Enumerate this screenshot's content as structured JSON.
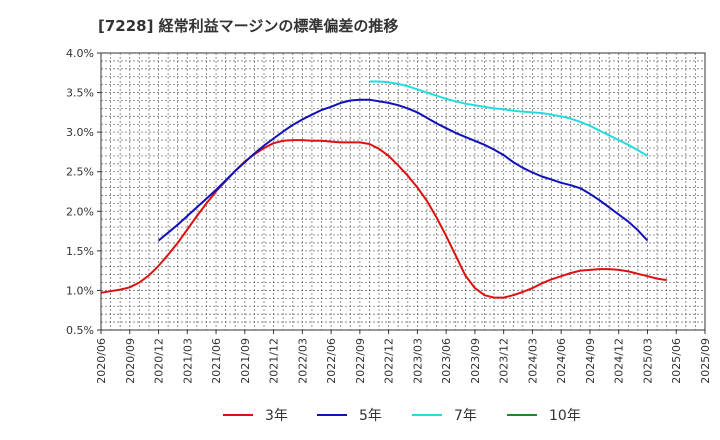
{
  "chart_data": {
    "type": "line",
    "title": "[7228]  経常利益マージンの標準偏差の推移",
    "xlabel": "",
    "ylabel": "",
    "ylim": [
      0.5,
      4.0
    ],
    "xlim": [
      "2020/06",
      "2025/09"
    ],
    "grid": true,
    "legend_position": "bottom",
    "x_ticks": [
      "2020/06",
      "2020/09",
      "2020/12",
      "2021/03",
      "2021/06",
      "2021/09",
      "2021/12",
      "2022/03",
      "2022/06",
      "2022/09",
      "2022/12",
      "2023/03",
      "2023/06",
      "2023/09",
      "2023/12",
      "2024/03",
      "2024/06",
      "2024/09",
      "2024/12",
      "2025/03",
      "2025/06",
      "2025/09"
    ],
    "y_ticks": [
      {
        "value": 0.5,
        "label": "0.5%"
      },
      {
        "value": 1.0,
        "label": "1.0%"
      },
      {
        "value": 1.5,
        "label": "1.5%"
      },
      {
        "value": 2.0,
        "label": "2.0%"
      },
      {
        "value": 2.5,
        "label": "2.5%"
      },
      {
        "value": 3.0,
        "label": "3.0%"
      },
      {
        "value": 3.5,
        "label": "3.5%"
      },
      {
        "value": 4.0,
        "label": "4.0%"
      }
    ],
    "series": [
      {
        "name": "3年",
        "color": "#dd1111",
        "points": [
          [
            "2020/06",
            0.97
          ],
          [
            "2020/07",
            0.99
          ],
          [
            "2020/08",
            1.01
          ],
          [
            "2020/09",
            1.04
          ],
          [
            "2020/10",
            1.1
          ],
          [
            "2020/11",
            1.19
          ],
          [
            "2020/12",
            1.31
          ],
          [
            "2021/01",
            1.45
          ],
          [
            "2021/02",
            1.6
          ],
          [
            "2021/03",
            1.77
          ],
          [
            "2021/04",
            1.94
          ],
          [
            "2021/05",
            2.1
          ],
          [
            "2021/06",
            2.25
          ],
          [
            "2021/07",
            2.38
          ],
          [
            "2021/08",
            2.51
          ],
          [
            "2021/09",
            2.63
          ],
          [
            "2021/10",
            2.72
          ],
          [
            "2021/11",
            2.8
          ],
          [
            "2021/12",
            2.86
          ],
          [
            "2022/01",
            2.89
          ],
          [
            "2022/02",
            2.9
          ],
          [
            "2022/03",
            2.9
          ],
          [
            "2022/04",
            2.89
          ],
          [
            "2022/05",
            2.89
          ],
          [
            "2022/06",
            2.88
          ],
          [
            "2022/07",
            2.87
          ],
          [
            "2022/08",
            2.87
          ],
          [
            "2022/09",
            2.87
          ],
          [
            "2022/10",
            2.85
          ],
          [
            "2022/11",
            2.79
          ],
          [
            "2022/12",
            2.7
          ],
          [
            "2023/01",
            2.58
          ],
          [
            "2023/02",
            2.45
          ],
          [
            "2023/03",
            2.3
          ],
          [
            "2023/04",
            2.13
          ],
          [
            "2023/05",
            1.92
          ],
          [
            "2023/06",
            1.69
          ],
          [
            "2023/07",
            1.44
          ],
          [
            "2023/08",
            1.19
          ],
          [
            "2023/09",
            1.03
          ],
          [
            "2023/10",
            0.94
          ],
          [
            "2023/11",
            0.91
          ],
          [
            "2023/12",
            0.91
          ],
          [
            "2024/01",
            0.94
          ],
          [
            "2024/02",
            0.98
          ],
          [
            "2024/03",
            1.03
          ],
          [
            "2024/04",
            1.09
          ],
          [
            "2024/05",
            1.14
          ],
          [
            "2024/06",
            1.18
          ],
          [
            "2024/07",
            1.22
          ],
          [
            "2024/08",
            1.25
          ],
          [
            "2024/09",
            1.26
          ],
          [
            "2024/10",
            1.27
          ],
          [
            "2024/11",
            1.27
          ],
          [
            "2024/12",
            1.26
          ],
          [
            "2025/01",
            1.24
          ],
          [
            "2025/02",
            1.21
          ],
          [
            "2025/03",
            1.18
          ],
          [
            "2025/04",
            1.15
          ],
          [
            "2025/05",
            1.13
          ]
        ]
      },
      {
        "name": "5年",
        "color": "#1111bb",
        "points": [
          [
            "2020/12",
            1.63
          ],
          [
            "2021/01",
            1.73
          ],
          [
            "2021/02",
            1.83
          ],
          [
            "2021/03",
            1.94
          ],
          [
            "2021/04",
            2.05
          ],
          [
            "2021/05",
            2.16
          ],
          [
            "2021/06",
            2.27
          ],
          [
            "2021/07",
            2.39
          ],
          [
            "2021/08",
            2.51
          ],
          [
            "2021/09",
            2.62
          ],
          [
            "2021/10",
            2.73
          ],
          [
            "2021/11",
            2.83
          ],
          [
            "2021/12",
            2.92
          ],
          [
            "2022/01",
            3.01
          ],
          [
            "2022/02",
            3.09
          ],
          [
            "2022/03",
            3.16
          ],
          [
            "2022/04",
            3.22
          ],
          [
            "2022/05",
            3.28
          ],
          [
            "2022/06",
            3.32
          ],
          [
            "2022/07",
            3.37
          ],
          [
            "2022/08",
            3.4
          ],
          [
            "2022/09",
            3.41
          ],
          [
            "2022/10",
            3.41
          ],
          [
            "2022/11",
            3.39
          ],
          [
            "2022/12",
            3.37
          ],
          [
            "2023/01",
            3.34
          ],
          [
            "2023/02",
            3.3
          ],
          [
            "2023/03",
            3.25
          ],
          [
            "2023/04",
            3.18
          ],
          [
            "2023/05",
            3.11
          ],
          [
            "2023/06",
            3.05
          ],
          [
            "2023/07",
            2.99
          ],
          [
            "2023/08",
            2.94
          ],
          [
            "2023/09",
            2.89
          ],
          [
            "2023/10",
            2.84
          ],
          [
            "2023/11",
            2.78
          ],
          [
            "2023/12",
            2.71
          ],
          [
            "2024/01",
            2.62
          ],
          [
            "2024/02",
            2.55
          ],
          [
            "2024/03",
            2.49
          ],
          [
            "2024/04",
            2.44
          ],
          [
            "2024/05",
            2.4
          ],
          [
            "2024/06",
            2.36
          ],
          [
            "2024/07",
            2.33
          ],
          [
            "2024/08",
            2.29
          ],
          [
            "2024/09",
            2.22
          ],
          [
            "2024/10",
            2.14
          ],
          [
            "2024/11",
            2.05
          ],
          [
            "2024/12",
            1.96
          ],
          [
            "2025/01",
            1.87
          ],
          [
            "2025/02",
            1.76
          ],
          [
            "2025/03",
            1.63
          ]
        ]
      },
      {
        "name": "7年",
        "color": "#22dddd",
        "points": [
          [
            "2022/10",
            3.64
          ],
          [
            "2022/11",
            3.64
          ],
          [
            "2022/12",
            3.63
          ],
          [
            "2023/01",
            3.61
          ],
          [
            "2023/02",
            3.58
          ],
          [
            "2023/03",
            3.54
          ],
          [
            "2023/04",
            3.5
          ],
          [
            "2023/05",
            3.46
          ],
          [
            "2023/06",
            3.42
          ],
          [
            "2023/07",
            3.39
          ],
          [
            "2023/08",
            3.36
          ],
          [
            "2023/09",
            3.34
          ],
          [
            "2023/10",
            3.32
          ],
          [
            "2023/11",
            3.3
          ],
          [
            "2023/12",
            3.29
          ],
          [
            "2024/01",
            3.27
          ],
          [
            "2024/02",
            3.26
          ],
          [
            "2024/03",
            3.25
          ],
          [
            "2024/04",
            3.24
          ],
          [
            "2024/05",
            3.22
          ],
          [
            "2024/06",
            3.2
          ],
          [
            "2024/07",
            3.17
          ],
          [
            "2024/08",
            3.13
          ],
          [
            "2024/09",
            3.08
          ],
          [
            "2024/10",
            3.02
          ],
          [
            "2024/11",
            2.96
          ],
          [
            "2024/12",
            2.9
          ],
          [
            "2025/01",
            2.84
          ],
          [
            "2025/02",
            2.77
          ],
          [
            "2025/03",
            2.7
          ]
        ]
      },
      {
        "name": "10年",
        "color": "#228822",
        "points": []
      }
    ]
  }
}
